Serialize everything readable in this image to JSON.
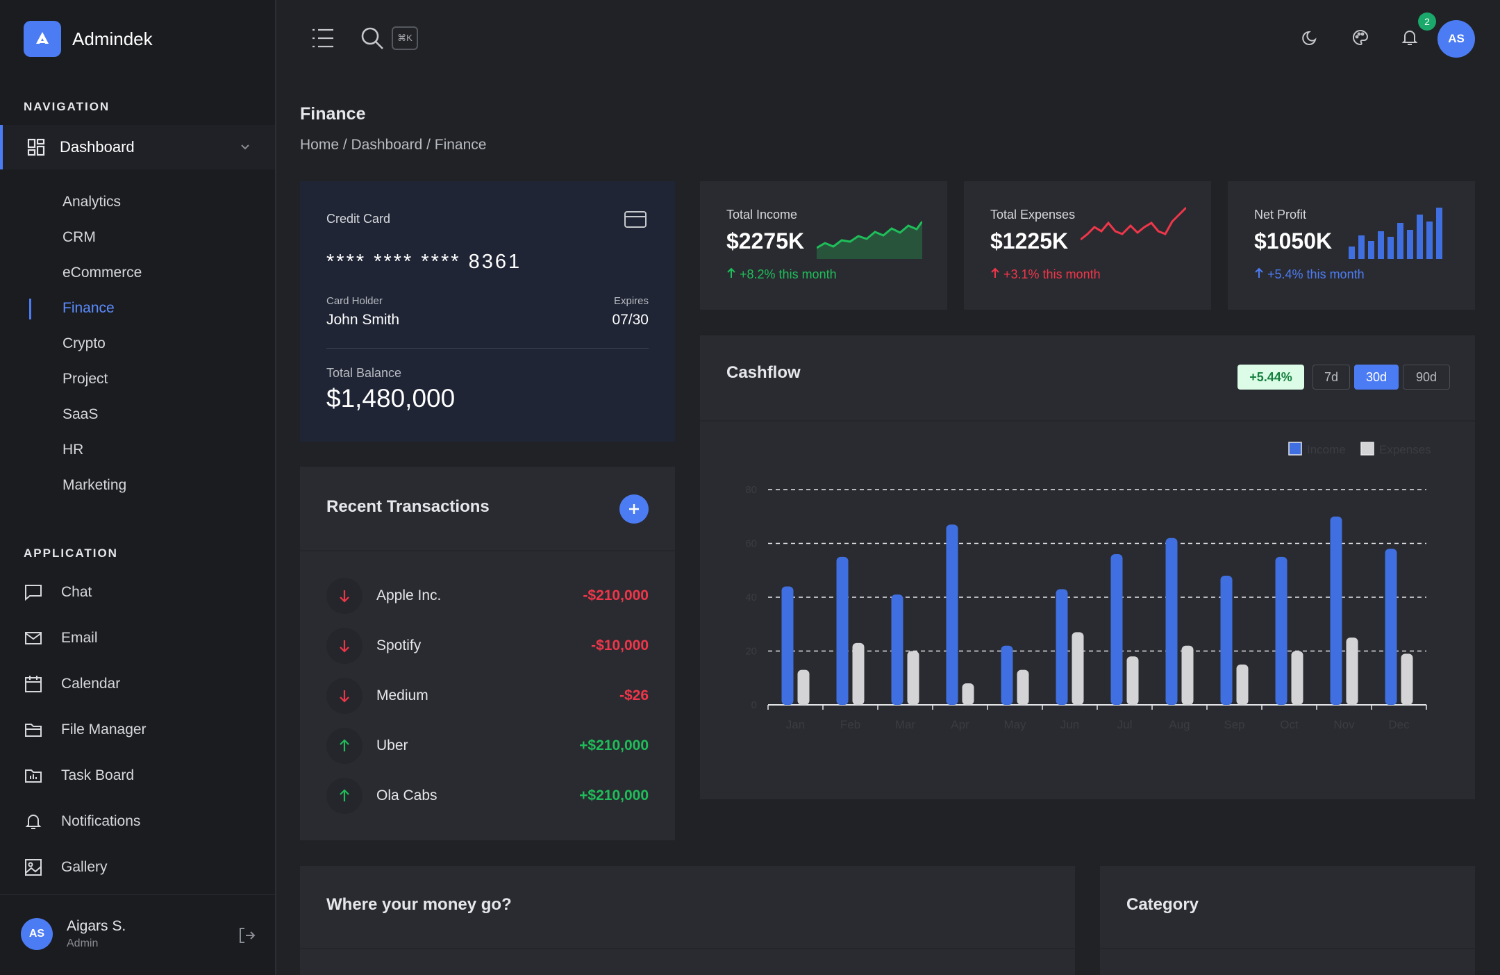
{
  "brand": {
    "name": "Admindek"
  },
  "sidebar": {
    "nav_title": "NAVIGATION",
    "dashboard_label": "Dashboard",
    "sub_items": [
      "Analytics",
      "CRM",
      "eCommerce",
      "Finance",
      "Crypto",
      "Project",
      "SaaS",
      "HR",
      "Marketing"
    ],
    "app_title": "APPLICATION",
    "app_items": [
      "Chat",
      "Email",
      "Calendar",
      "File Manager",
      "Task Board",
      "Notifications",
      "Gallery"
    ],
    "user": {
      "initials": "AS",
      "name": "Aigars S.",
      "role": "Admin"
    }
  },
  "topbar": {
    "shortcut": "⌘K",
    "notif_count": "2",
    "avatar_initials": "AS"
  },
  "page": {
    "title": "Finance",
    "breadcrumb": "Home / Dashboard / Finance"
  },
  "credit_card": {
    "title": "Credit Card",
    "number": "**** **** **** 8361",
    "holder_label": "Card Holder",
    "holder": "John Smith",
    "expires_label": "Expires",
    "expires": "07/30",
    "balance_label": "Total Balance",
    "balance": "$1,480,000"
  },
  "stats": [
    {
      "label": "Total Income",
      "value": "$2275K",
      "change": "+8.2% this month",
      "color": "#1fbe5a"
    },
    {
      "label": "Total Expenses",
      "value": "$1225K",
      "change": "+3.1% this month",
      "color": "#f0364a"
    },
    {
      "label": "Net Profit",
      "value": "$1050K",
      "change": "+5.4% this month",
      "color": "#4c7cf3"
    }
  ],
  "transactions": {
    "title": "Recent Transactions",
    "items": [
      {
        "name": "Apple Inc.",
        "amount": "-$210,000",
        "dir": "down"
      },
      {
        "name": "Spotify",
        "amount": "-$10,000",
        "dir": "down"
      },
      {
        "name": "Medium",
        "amount": "-$26",
        "dir": "down"
      },
      {
        "name": "Uber",
        "amount": "+$210,000",
        "dir": "up"
      },
      {
        "name": "Ola Cabs",
        "amount": "+$210,000",
        "dir": "up"
      }
    ]
  },
  "cashflow": {
    "title": "Cashflow",
    "change": "+5.44%",
    "ranges": [
      "7d",
      "30d",
      "90d"
    ],
    "selected_range": "30d"
  },
  "chart_data": {
    "type": "bar",
    "categories": [
      "Jan",
      "Feb",
      "Mar",
      "Apr",
      "May",
      "Jun",
      "Jul",
      "Aug",
      "Sep",
      "Oct",
      "Nov",
      "Dec"
    ],
    "series": [
      {
        "name": "Income",
        "values": [
          44,
          55,
          41,
          67,
          22,
          43,
          56,
          62,
          48,
          55,
          70,
          58
        ],
        "color": "#3f6fe0"
      },
      {
        "name": "Expenses",
        "values": [
          13,
          23,
          20,
          8,
          13,
          27,
          18,
          22,
          15,
          20,
          25,
          19
        ],
        "color": "#d4d4d6"
      }
    ],
    "yticks": [
      0,
      20,
      40,
      60,
      80
    ],
    "ylim": [
      0,
      80
    ],
    "legend": "top-right",
    "grid": true
  },
  "bottom": {
    "money_title": "Where your money go?",
    "category_title": "Category"
  }
}
